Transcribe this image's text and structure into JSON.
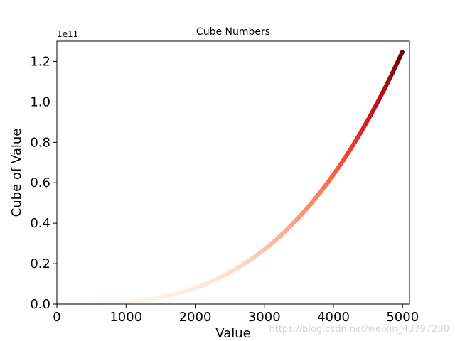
{
  "chart_data": {
    "type": "scatter",
    "title": "Cube Numbers",
    "xlabel": "Value",
    "ylabel": "Cube of Value",
    "x_range": [
      1,
      5000
    ],
    "y_formula": "x^3",
    "xlim": [
      0,
      5100
    ],
    "ylim": [
      0,
      130000000000.0
    ],
    "x_ticks": [
      0,
      1000,
      2000,
      3000,
      4000,
      5000
    ],
    "x_tick_labels": [
      "0",
      "1000",
      "2000",
      "3000",
      "4000",
      "5000"
    ],
    "y_ticks": [
      0,
      20000000000.0,
      40000000000.0,
      60000000000.0,
      80000000000.0,
      100000000000.0,
      120000000000.0
    ],
    "y_tick_labels": [
      "0.0",
      "0.2",
      "0.4",
      "0.6",
      "0.8",
      "1.0",
      "1.2"
    ],
    "y_offset_label": "1e11",
    "colormap": "Reds",
    "color_stops": [
      "#fff5f0",
      "#fee0d2",
      "#fcbba1",
      "#fc9272",
      "#fb6a4a",
      "#ef3b2c",
      "#cb181d",
      "#a50f15",
      "#67000d"
    ],
    "grid": false,
    "legend": "none"
  },
  "watermark": "https://blog.csdn.net/weixin_43797280"
}
